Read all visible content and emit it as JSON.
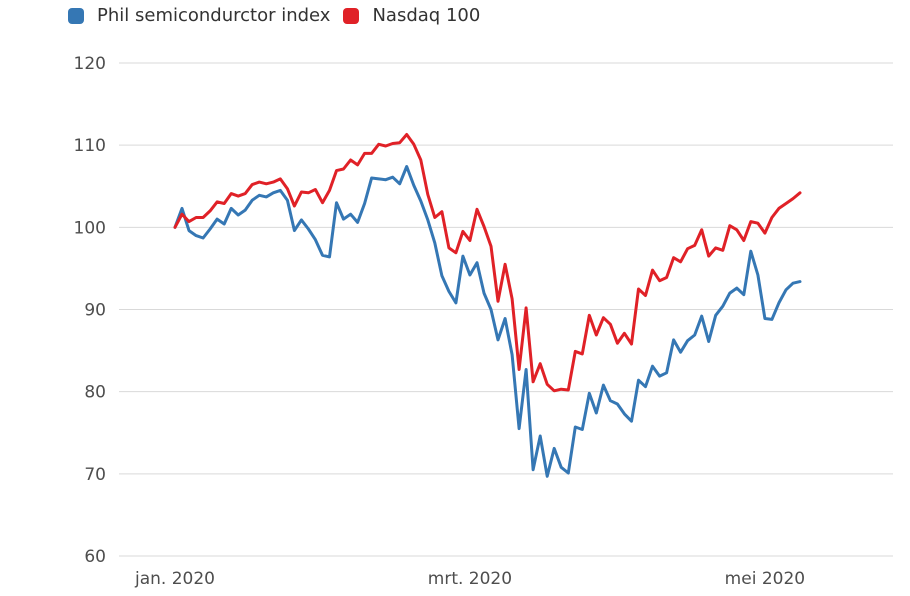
{
  "chart_data": {
    "type": "line",
    "title": "",
    "x_description": "daily values, jan 2020 - early may 2020",
    "x_tick_labels": [
      {
        "index": 0,
        "label": "jan. 2020"
      },
      {
        "index": 42,
        "label": "mrt. 2020"
      },
      {
        "index": 84,
        "label": "mei 2020"
      }
    ],
    "y_ticks": [
      120,
      110,
      100,
      90,
      80,
      70,
      60
    ],
    "ylim": [
      60,
      120
    ],
    "grid": true,
    "legend_position": "top-left",
    "colors": {
      "grid": "#d9d9d9",
      "axis_text": "#4e4e4e",
      "legend_text": "#333333",
      "background": "#ffffff"
    },
    "series": [
      {
        "name": "Phil semicondurctor index",
        "color": "#3577b4",
        "values": [
          100.0,
          102.3,
          99.6,
          99.0,
          98.7,
          99.8,
          101.0,
          100.4,
          102.3,
          101.5,
          102.1,
          103.3,
          103.9,
          103.7,
          104.2,
          104.5,
          103.3,
          99.6,
          100.9,
          99.8,
          98.5,
          96.6,
          96.4,
          103.0,
          101.0,
          101.6,
          100.6,
          102.9,
          106.0,
          105.9,
          105.8,
          106.1,
          105.3,
          107.4,
          105.1,
          103.2,
          100.9,
          98.1,
          94.1,
          92.2,
          90.8,
          96.5,
          94.2,
          95.7,
          92.0,
          90.0,
          86.3,
          88.9,
          84.5,
          75.5,
          82.7,
          70.5,
          74.6,
          69.7,
          73.1,
          70.8,
          70.1,
          75.7,
          75.4,
          79.8,
          77.4,
          80.8,
          78.9,
          78.5,
          77.3,
          76.4,
          81.4,
          80.6,
          83.1,
          81.9,
          82.3,
          86.3,
          84.8,
          86.2,
          86.9,
          89.2,
          86.1,
          89.3,
          90.4,
          92.0,
          92.6,
          91.8,
          97.1,
          94.2,
          88.9,
          88.8,
          90.8,
          92.4,
          93.2,
          93.4
        ]
      },
      {
        "name": "Nasdaq 100",
        "color": "#e02127",
        "values": [
          100.0,
          101.6,
          100.7,
          101.2,
          101.2,
          102.0,
          103.1,
          102.9,
          104.1,
          103.8,
          104.1,
          105.2,
          105.5,
          105.3,
          105.5,
          105.9,
          104.7,
          102.6,
          104.3,
          104.2,
          104.6,
          103.0,
          104.5,
          106.9,
          107.1,
          108.2,
          107.6,
          109.0,
          109.0,
          110.1,
          109.9,
          110.2,
          110.3,
          111.3,
          110.1,
          108.2,
          104.0,
          101.2,
          101.9,
          97.5,
          96.9,
          99.5,
          98.4,
          102.2,
          100.1,
          97.7,
          91.0,
          95.5,
          91.3,
          82.7,
          90.2,
          81.2,
          83.4,
          80.9,
          80.1,
          80.3,
          80.2,
          84.9,
          84.6,
          89.3,
          86.9,
          89.0,
          88.2,
          85.9,
          87.1,
          85.8,
          92.5,
          91.7,
          94.8,
          93.5,
          93.9,
          96.3,
          95.8,
          97.4,
          97.8,
          99.7,
          96.5,
          97.5,
          97.2,
          100.2,
          99.7,
          98.4,
          100.7,
          100.5,
          99.3,
          101.2,
          102.3,
          102.9,
          103.5,
          104.2
        ]
      }
    ]
  }
}
